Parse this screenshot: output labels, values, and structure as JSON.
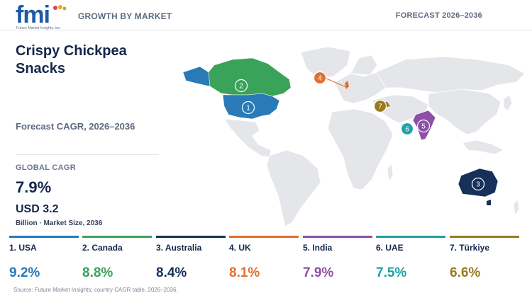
{
  "header": {
    "logo_text": "fmi",
    "logo_subtext": "Future Market Insights, inc.",
    "section_label": "GROWTH BY MARKET",
    "forecast_label": "FORECAST 2026–2036"
  },
  "summary": {
    "title": "Crispy Chickpea Snacks",
    "subtitle": "Forecast CAGR, 2026–2036",
    "global_cagr_label": "GLOBAL CAGR",
    "global_cagr_value": "7.9%",
    "market_size_value": "USD 3.2",
    "market_size_unit": "Billion · Market Size, 2036"
  },
  "countries": [
    {
      "rank": "1",
      "label": "1. USA",
      "cagr": "9.2%",
      "color": "#2a7ab8"
    },
    {
      "rank": "2",
      "label": "2. Canada",
      "cagr": "8.8%",
      "color": "#3aa35a"
    },
    {
      "rank": "3",
      "label": "3. Australia",
      "cagr": "8.4%",
      "color": "#16305a"
    },
    {
      "rank": "4",
      "label": "4. UK",
      "cagr": "8.1%",
      "color": "#e0702e"
    },
    {
      "rank": "5",
      "label": "5. India",
      "cagr": "7.9%",
      "color": "#8e4fa6"
    },
    {
      "rank": "6",
      "label": "6. UAE",
      "cagr": "7.5%",
      "color": "#1fa0a8"
    },
    {
      "rank": "7",
      "label": "7. Türkiye",
      "cagr": "6.6%",
      "color": "#9a7a1c"
    }
  ],
  "source": "Source: Future Market Insights; country CAGR table, 2026–2036."
}
